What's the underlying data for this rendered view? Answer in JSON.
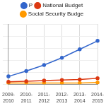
{
  "chart_data": {
    "type": "line",
    "categories": [
      "2009-2010",
      "2010-2011",
      "2011-2012",
      "2012-2013",
      "2013-2014",
      "2014-2015"
    ],
    "series": [
      {
        "name": "P",
        "color": "#3366cc",
        "values": [
          13,
          22,
          32,
          44,
          58,
          72
        ]
      },
      {
        "name": "National Budget",
        "color": "#dc3912",
        "values": [
          4,
          5,
          6,
          7,
          8,
          10
        ]
      },
      {
        "name": "Social Security Budge",
        "color": "#ff9900",
        "values": [
          2,
          2,
          2,
          2,
          2,
          3
        ]
      }
    ],
    "ylim": [
      0,
      100
    ],
    "yticks": [
      0,
      20,
      40,
      60,
      80,
      100
    ],
    "grid": true,
    "legend": "top",
    "tick_labels": "x",
    "marker": "circle"
  }
}
